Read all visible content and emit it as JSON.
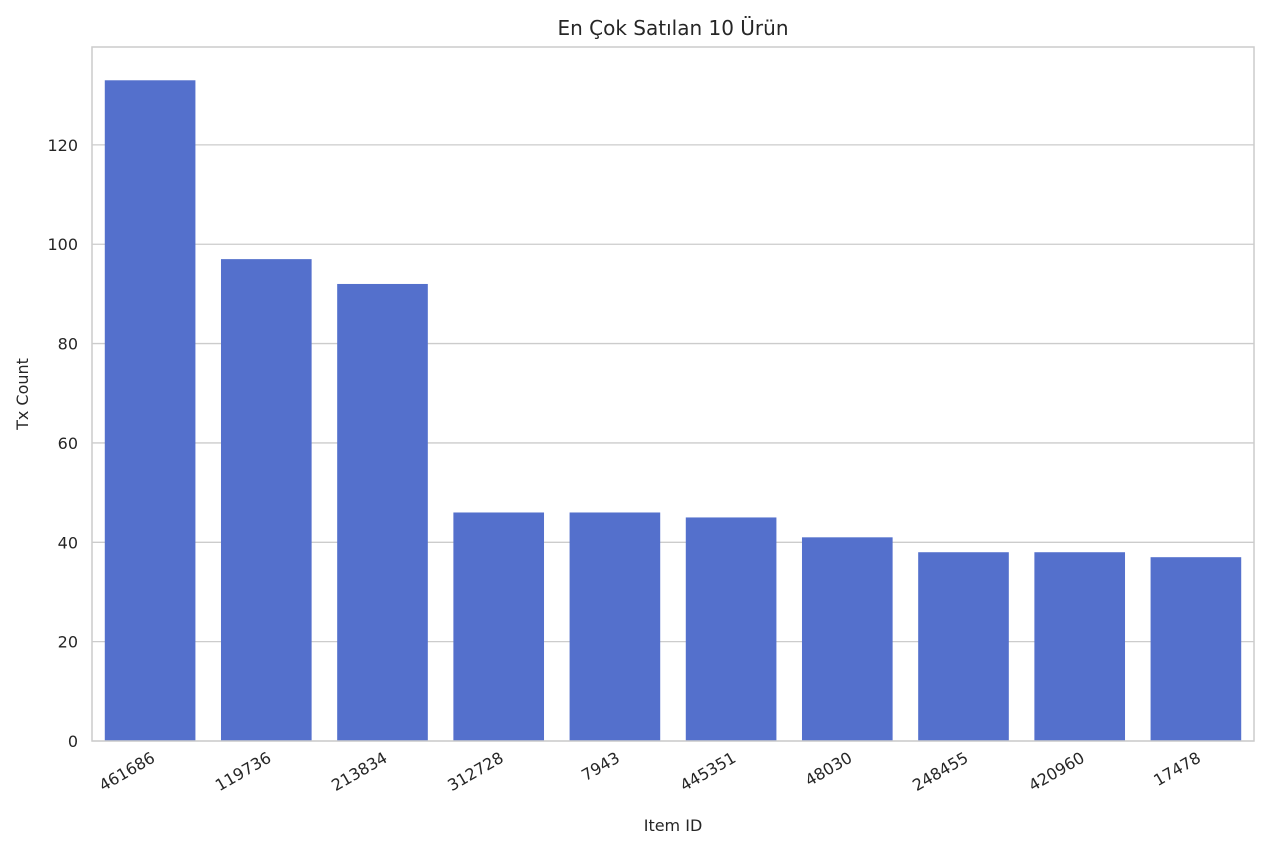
{
  "chart_data": {
    "type": "bar",
    "title": "En Çok Satılan 10 Ürün",
    "xlabel": "Item ID",
    "ylabel": "Tx Count",
    "categories": [
      "461686",
      "119736",
      "213834",
      "312728",
      "7943",
      "445351",
      "48030",
      "248455",
      "420960",
      "17478"
    ],
    "values": [
      133,
      97,
      92,
      46,
      46,
      45,
      41,
      38,
      38,
      37
    ],
    "ylim": [
      0,
      139.7
    ],
    "yticks": [
      0,
      20,
      40,
      60,
      80,
      100,
      120
    ],
    "grid": true,
    "bar_color": "#5470CC",
    "grid_color": "#CCCCCC",
    "spine_color": "#CCCCCC"
  }
}
